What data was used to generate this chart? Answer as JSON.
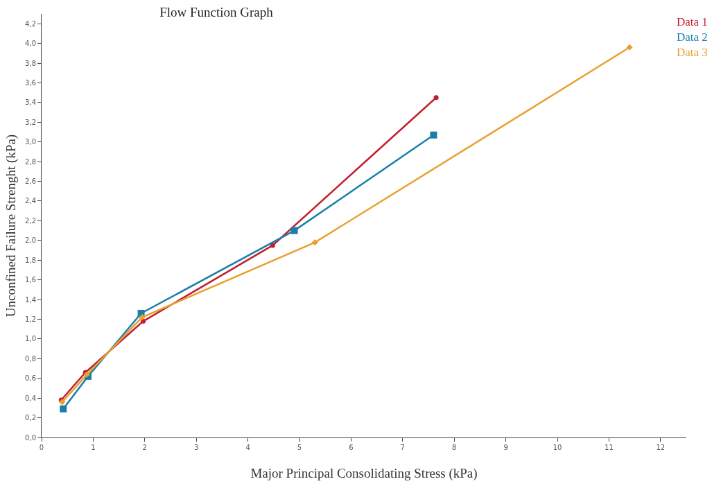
{
  "chart_data": {
    "type": "line",
    "title": "Flow Function Graph",
    "xlabel": "Major Principal Consolidating Stress (kPa)",
    "ylabel": "Unconfined Failure Strenght (kPa)",
    "xlim": [
      0,
      12.5
    ],
    "xticks": [
      0,
      1,
      2,
      3,
      4,
      5,
      6,
      7,
      8,
      9,
      10,
      11,
      12
    ],
    "ylim": [
      0,
      4.3
    ],
    "yticks": [
      {
        "value": 0,
        "label": "0,0"
      },
      {
        "value": 0.2,
        "label": "0,2"
      },
      {
        "value": 0.4,
        "label": "0,4"
      },
      {
        "value": 0.6,
        "label": "0,6"
      },
      {
        "value": 0.8,
        "label": "0,8"
      },
      {
        "value": 1.0,
        "label": "1,0"
      },
      {
        "value": 1.2,
        "label": "1,2"
      },
      {
        "value": 1.4,
        "label": "1,4"
      },
      {
        "value": 1.6,
        "label": "1,6"
      },
      {
        "value": 1.8,
        "label": "1,8"
      },
      {
        "value": 2.0,
        "label": "2,0"
      },
      {
        "value": 2.2,
        "label": "2,2"
      },
      {
        "value": 2.4,
        "label": "2,4"
      },
      {
        "value": 2.6,
        "label": "2,6"
      },
      {
        "value": 2.8,
        "label": "2,8"
      },
      {
        "value": 3.0,
        "label": "3,0"
      },
      {
        "value": 3.2,
        "label": "3,2"
      },
      {
        "value": 3.4,
        "label": "3,4"
      },
      {
        "value": 3.6,
        "label": "3,6"
      },
      {
        "value": 3.8,
        "label": "3,8"
      },
      {
        "value": 4.0,
        "label": "4,0"
      },
      {
        "value": 4.2,
        "label": "4,2"
      }
    ],
    "legend": "top right",
    "line_style": "solid",
    "series": [
      {
        "name": "Data 1",
        "color": "#c0202e",
        "marker": "circle",
        "x": [
          0.38,
          0.85,
          1.97,
          4.48,
          7.65
        ],
        "values": [
          0.38,
          0.66,
          1.18,
          1.95,
          3.45
        ]
      },
      {
        "name": "Data 2",
        "color": "#1a7fa8",
        "marker": "square",
        "x": [
          0.42,
          0.9,
          1.93,
          4.9,
          7.6
        ],
        "values": [
          0.29,
          0.62,
          1.26,
          2.1,
          3.07
        ]
      },
      {
        "name": "Data 3",
        "color": "#e8a030",
        "marker": "diamond",
        "x": [
          0.4,
          0.88,
          1.95,
          5.3,
          11.4
        ],
        "values": [
          0.36,
          0.64,
          1.22,
          1.98,
          3.96
        ]
      }
    ]
  }
}
